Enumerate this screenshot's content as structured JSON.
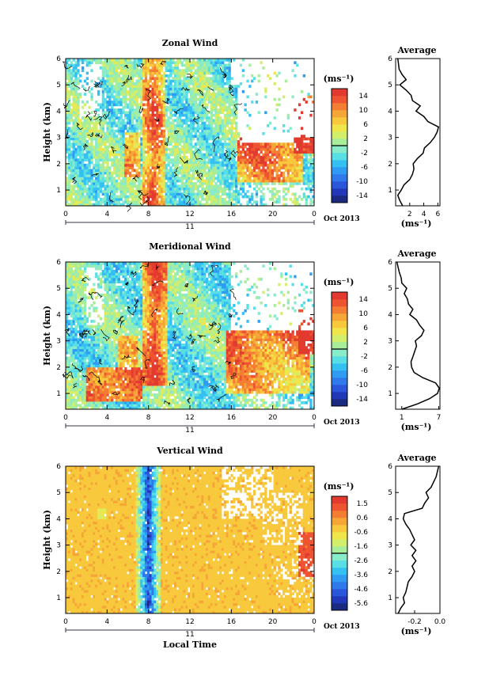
{
  "chart_data": [
    {
      "type": "heatmap",
      "title": "Zonal Wind",
      "ylabel": "Height (km)",
      "xlim": [
        0,
        24
      ],
      "ylim": [
        0.4,
        6
      ],
      "x_ticks": [
        "0",
        "4",
        "8",
        "12",
        "16",
        "20",
        "0"
      ],
      "y_ticks": [
        "1",
        "2",
        "3",
        "4",
        "5",
        "6"
      ],
      "date_label": "11",
      "date_suffix": "Oct 2013",
      "colorbar": {
        "unit": "(ms⁻¹)",
        "ticks": [
          "14",
          "10",
          "6",
          "2",
          "-2",
          "-6",
          "-10",
          "-14"
        ],
        "range": [
          -16,
          16
        ]
      },
      "average": {
        "title": "Average",
        "xlabel": "(ms⁻¹)",
        "x_ticks": [
          "2",
          "4",
          "6"
        ],
        "xlim": [
          0,
          6.3
        ],
        "profile": [
          [
            1.0,
            0.4
          ],
          [
            0.6,
            0.6
          ],
          [
            0.3,
            0.8
          ],
          [
            0.8,
            1.0
          ],
          [
            1.2,
            1.2
          ],
          [
            2.0,
            1.4
          ],
          [
            2.4,
            1.6
          ],
          [
            2.6,
            1.8
          ],
          [
            2.5,
            2.0
          ],
          [
            3.1,
            2.2
          ],
          [
            3.9,
            2.4
          ],
          [
            4.1,
            2.6
          ],
          [
            4.9,
            2.8
          ],
          [
            5.5,
            3.0
          ],
          [
            5.9,
            3.2
          ],
          [
            6.1,
            3.4
          ],
          [
            4.6,
            3.6
          ],
          [
            4.0,
            3.8
          ],
          [
            2.9,
            4.0
          ],
          [
            3.5,
            4.2
          ],
          [
            2.4,
            4.4
          ],
          [
            2.2,
            4.6
          ],
          [
            1.5,
            4.8
          ],
          [
            0.6,
            5.0
          ],
          [
            1.5,
            5.2
          ],
          [
            0.9,
            5.4
          ],
          [
            0.5,
            5.6
          ],
          [
            0.4,
            5.8
          ],
          [
            0.3,
            6.0
          ]
        ]
      }
    },
    {
      "type": "heatmap",
      "title": "Meridional Wind",
      "ylabel": "Height (km)",
      "xlim": [
        0,
        24
      ],
      "ylim": [
        0.4,
        6
      ],
      "x_ticks": [
        "0",
        "4",
        "8",
        "12",
        "16",
        "20",
        "0"
      ],
      "y_ticks": [
        "1",
        "2",
        "3",
        "4",
        "5",
        "6"
      ],
      "date_label": "11",
      "date_suffix": "Oct 2013",
      "colorbar": {
        "unit": "(ms⁻¹)",
        "ticks": [
          "14",
          "10",
          "6",
          "2",
          "-2",
          "-6",
          "-10",
          "-14"
        ],
        "range": [
          -16,
          16
        ]
      },
      "average": {
        "title": "Average",
        "xlabel": "(ms⁻¹)",
        "x_ticks": [
          "1",
          "7"
        ],
        "xlim": [
          0,
          7.2
        ],
        "profile": [
          [
            1.0,
            0.4
          ],
          [
            3.5,
            0.6
          ],
          [
            5.5,
            0.8
          ],
          [
            6.8,
            1.0
          ],
          [
            7.1,
            1.2
          ],
          [
            6.5,
            1.4
          ],
          [
            4.4,
            1.6
          ],
          [
            3.0,
            1.8
          ],
          [
            2.6,
            2.0
          ],
          [
            2.5,
            2.2
          ],
          [
            2.8,
            2.4
          ],
          [
            3.1,
            2.6
          ],
          [
            3.4,
            2.8
          ],
          [
            3.2,
            3.0
          ],
          [
            4.2,
            3.2
          ],
          [
            4.6,
            3.4
          ],
          [
            3.9,
            3.6
          ],
          [
            3.4,
            3.8
          ],
          [
            2.3,
            4.0
          ],
          [
            2.8,
            4.2
          ],
          [
            2.1,
            4.4
          ],
          [
            1.9,
            4.6
          ],
          [
            1.4,
            4.8
          ],
          [
            1.8,
            5.0
          ],
          [
            1.0,
            5.2
          ],
          [
            0.9,
            5.4
          ],
          [
            0.6,
            5.6
          ],
          [
            0.4,
            5.8
          ],
          [
            0.2,
            6.0
          ]
        ]
      }
    },
    {
      "type": "heatmap",
      "title": "Vertical Wind",
      "xlabel": "Local Time",
      "ylabel": "Height (km)",
      "xlim": [
        0,
        24
      ],
      "ylim": [
        0.4,
        6
      ],
      "x_ticks": [
        "0",
        "4",
        "8",
        "12",
        "16",
        "20",
        "0"
      ],
      "y_ticks": [
        "1",
        "2",
        "3",
        "4",
        "5",
        "6"
      ],
      "date_label": "11",
      "date_suffix": "Oct 2013",
      "colorbar": {
        "unit": "(ms⁻¹)",
        "ticks": [
          "1.5",
          "0.6",
          "-0.6",
          "-1.6",
          "-2.6",
          "-3.6",
          "-4.6",
          "-5.6"
        ],
        "range": [
          -6.1,
          2.1
        ]
      },
      "average": {
        "title": "Average",
        "xlabel": "(ms⁻¹)",
        "x_ticks": [
          "-0.2",
          "0.0"
        ],
        "xlim": [
          -0.35,
          0.0
        ],
        "profile": [
          [
            -0.33,
            0.4
          ],
          [
            -0.31,
            0.6
          ],
          [
            -0.28,
            0.8
          ],
          [
            -0.29,
            1.0
          ],
          [
            -0.27,
            1.2
          ],
          [
            -0.26,
            1.4
          ],
          [
            -0.25,
            1.6
          ],
          [
            -0.22,
            1.8
          ],
          [
            -0.2,
            2.0
          ],
          [
            -0.22,
            2.2
          ],
          [
            -0.19,
            2.4
          ],
          [
            -0.22,
            2.6
          ],
          [
            -0.19,
            2.8
          ],
          [
            -0.23,
            3.0
          ],
          [
            -0.2,
            3.2
          ],
          [
            -0.22,
            3.4
          ],
          [
            -0.24,
            3.6
          ],
          [
            -0.27,
            3.8
          ],
          [
            -0.29,
            4.0
          ],
          [
            -0.28,
            4.2
          ],
          [
            -0.14,
            4.4
          ],
          [
            -0.12,
            4.6
          ],
          [
            -0.09,
            4.8
          ],
          [
            -0.11,
            5.0
          ],
          [
            -0.07,
            5.2
          ],
          [
            -0.05,
            5.4
          ],
          [
            -0.03,
            5.6
          ],
          [
            -0.02,
            5.8
          ],
          [
            -0.01,
            6.0
          ]
        ]
      }
    }
  ]
}
